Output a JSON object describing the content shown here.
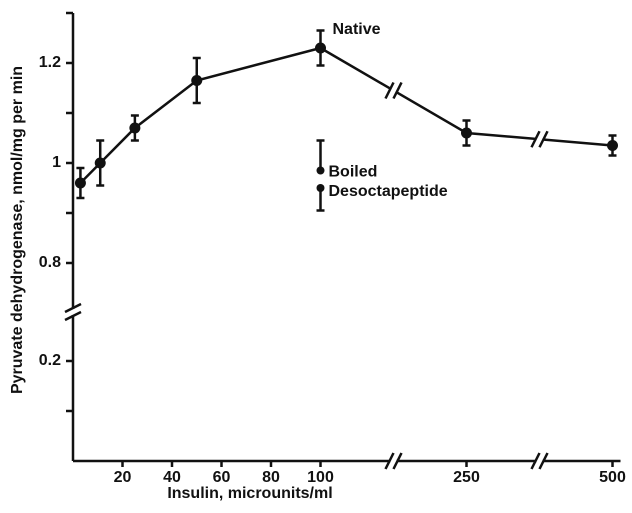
{
  "chart_data": {
    "type": "line",
    "x_label": "Insulin, microunits/ml",
    "y_label": "Pyruvate dehydrogenase, nmol/mg per min",
    "xlim": [
      0,
      500
    ],
    "xticks": [
      20,
      40,
      60,
      80,
      100,
      250,
      500
    ],
    "xbreaks": [
      [
        100,
        250
      ],
      [
        250,
        500
      ]
    ],
    "ylim": [
      0,
      1.3
    ],
    "yticks": [
      0.2,
      0.8,
      1.0,
      1.2
    ],
    "yminorticks": [
      0.1,
      0.9,
      1.1,
      1.3
    ],
    "ybreaks": [
      [
        0.2,
        0.8
      ]
    ],
    "series": [
      {
        "name": "Native",
        "color": "#111111",
        "connect": true,
        "error_direction": "both",
        "x": [
          3,
          11,
          25,
          50,
          100,
          250,
          500
        ],
        "values": [
          0.96,
          1.0,
          1.07,
          1.165,
          1.23,
          1.06,
          1.035
        ],
        "errors": [
          0.03,
          0.045,
          0.025,
          0.045,
          0.035,
          0.025,
          0.02
        ]
      },
      {
        "name": "Boiled",
        "color": "#111111",
        "connect": false,
        "error_direction": "up",
        "x": [
          100
        ],
        "values": [
          0.985
        ],
        "errors": [
          0.06
        ]
      },
      {
        "name": "Desoctapeptide",
        "color": "#111111",
        "connect": false,
        "error_direction": "down",
        "x": [
          100
        ],
        "values": [
          0.95
        ],
        "errors": [
          0.045
        ]
      }
    ]
  }
}
